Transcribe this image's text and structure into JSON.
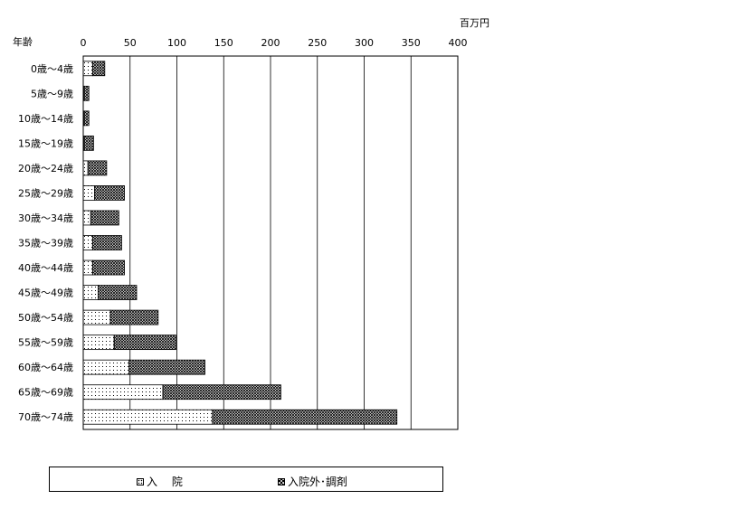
{
  "chart_data": {
    "type": "bar",
    "orientation": "horizontal",
    "stacked": true,
    "ylabel": "年齢",
    "unit": "百万円",
    "xlim": [
      0,
      400
    ],
    "xticks": [
      0,
      50,
      100,
      150,
      200,
      250,
      300,
      350,
      400
    ],
    "grid": true,
    "legend_position": "bottom",
    "categories": [
      "0歳～4歳",
      "5歳～9歳",
      "10歳～14歳",
      "15歳～19歳",
      "20歳～24歳",
      "25歳～29歳",
      "30歳～34歳",
      "35歳～39歳",
      "40歳～44歳",
      "45歳～49歳",
      "50歳～54歳",
      "55歳～59歳",
      "60歳～64歳",
      "65歳～69歳",
      "70歳～74歳"
    ],
    "series": [
      {
        "name": "入　 院",
        "pattern": "dots",
        "values": [
          10,
          1,
          1,
          1,
          5,
          12,
          8,
          10,
          10,
          16,
          29,
          33,
          49,
          85,
          138
        ]
      },
      {
        "name": "入院外･調剤",
        "pattern": "crosshatch",
        "values": [
          13,
          5,
          5,
          10,
          20,
          32,
          30,
          31,
          34,
          41,
          51,
          66,
          81,
          126,
          197
        ]
      }
    ]
  },
  "colors": {
    "axis": "#000000",
    "grid": "#000000",
    "fill": "#ffffff"
  }
}
